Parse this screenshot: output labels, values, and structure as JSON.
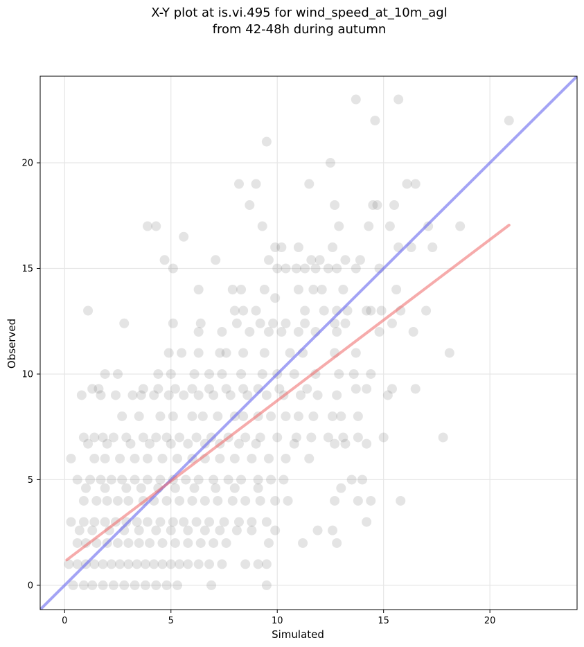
{
  "chart_data": {
    "type": "scatter",
    "title_line1": "X-Y plot at is.vi.495 for wind_speed_at_10m_agl",
    "title_line2": "from 42-48h during autumn",
    "xlabel": "Simulated",
    "ylabel": "Observed",
    "xlim": [
      -1.15,
      24.1
    ],
    "ylim": [
      -1.15,
      24.1
    ],
    "xticks": [
      0,
      5,
      10,
      15,
      20
    ],
    "yticks": [
      0,
      5,
      10,
      15,
      20
    ],
    "grid": true,
    "colors": {
      "points": "#555555",
      "one_to_one": "#6666ee",
      "regression": "#ee6666",
      "grid": "#e6e6e6"
    },
    "one_to_one_line": {
      "x": [
        -1.15,
        24.1
      ],
      "y": [
        -1.15,
        24.1
      ]
    },
    "regression_line": {
      "x": [
        0.1,
        20.9
      ],
      "y": [
        1.2,
        17.05
      ]
    },
    "points": [
      [
        13.7,
        23.0
      ],
      [
        15.7,
        23.0
      ],
      [
        14.6,
        22.0
      ],
      [
        20.9,
        22.0
      ],
      [
        9.5,
        21.0
      ],
      [
        12.5,
        20.0
      ],
      [
        8.2,
        19.0
      ],
      [
        9.0,
        19.0
      ],
      [
        11.5,
        19.0
      ],
      [
        16.1,
        19.0
      ],
      [
        16.5,
        19.0
      ],
      [
        8.7,
        18.0
      ],
      [
        12.7,
        18.0
      ],
      [
        14.5,
        18.0
      ],
      [
        14.7,
        18.0
      ],
      [
        15.5,
        18.0
      ],
      [
        3.9,
        17.0
      ],
      [
        4.3,
        17.0
      ],
      [
        9.3,
        17.0
      ],
      [
        12.9,
        17.0
      ],
      [
        14.3,
        17.0
      ],
      [
        15.3,
        17.0
      ],
      [
        17.1,
        17.0
      ],
      [
        18.6,
        17.0
      ],
      [
        5.6,
        16.5
      ],
      [
        9.9,
        16.0
      ],
      [
        10.2,
        16.0
      ],
      [
        11.0,
        16.0
      ],
      [
        12.6,
        16.0
      ],
      [
        15.7,
        16.0
      ],
      [
        16.3,
        16.0
      ],
      [
        17.3,
        16.0
      ],
      [
        4.7,
        15.4
      ],
      [
        7.1,
        15.4
      ],
      [
        9.6,
        15.4
      ],
      [
        11.6,
        15.4
      ],
      [
        12.0,
        15.4
      ],
      [
        13.2,
        15.4
      ],
      [
        13.9,
        15.4
      ],
      [
        5.1,
        15.0
      ],
      [
        10.0,
        15.0
      ],
      [
        10.4,
        15.0
      ],
      [
        10.9,
        15.0
      ],
      [
        11.3,
        15.0
      ],
      [
        11.8,
        15.0
      ],
      [
        12.4,
        15.0
      ],
      [
        12.8,
        15.0
      ],
      [
        13.7,
        15.0
      ],
      [
        14.8,
        15.0
      ],
      [
        9.9,
        13.6
      ],
      [
        6.3,
        14.0
      ],
      [
        7.9,
        14.0
      ],
      [
        8.3,
        14.0
      ],
      [
        9.4,
        14.0
      ],
      [
        11.0,
        14.0
      ],
      [
        11.7,
        14.0
      ],
      [
        12.1,
        14.0
      ],
      [
        13.1,
        14.0
      ],
      [
        15.6,
        14.0
      ],
      [
        1.1,
        13.0
      ],
      [
        8.0,
        13.0
      ],
      [
        8.4,
        13.0
      ],
      [
        9.0,
        13.0
      ],
      [
        11.3,
        13.0
      ],
      [
        12.2,
        13.0
      ],
      [
        12.8,
        13.0
      ],
      [
        13.3,
        13.0
      ],
      [
        14.2,
        13.0
      ],
      [
        14.4,
        13.0
      ],
      [
        14.9,
        13.0
      ],
      [
        15.8,
        13.0
      ],
      [
        17.0,
        13.0
      ],
      [
        2.8,
        12.4
      ],
      [
        5.1,
        12.4
      ],
      [
        6.4,
        12.4
      ],
      [
        8.1,
        12.4
      ],
      [
        9.2,
        12.4
      ],
      [
        9.8,
        12.4
      ],
      [
        10.4,
        12.4
      ],
      [
        11.3,
        12.4
      ],
      [
        12.7,
        12.4
      ],
      [
        13.2,
        12.4
      ],
      [
        15.4,
        12.4
      ],
      [
        6.3,
        12.0
      ],
      [
        7.4,
        12.0
      ],
      [
        8.7,
        12.0
      ],
      [
        9.6,
        12.0
      ],
      [
        10.2,
        12.0
      ],
      [
        11.0,
        12.0
      ],
      [
        11.8,
        12.0
      ],
      [
        12.8,
        12.0
      ],
      [
        14.8,
        12.0
      ],
      [
        16.4,
        12.0
      ],
      [
        4.9,
        11.0
      ],
      [
        5.5,
        11.0
      ],
      [
        6.3,
        11.0
      ],
      [
        7.3,
        11.0
      ],
      [
        7.6,
        11.0
      ],
      [
        8.4,
        11.0
      ],
      [
        9.4,
        11.0
      ],
      [
        10.6,
        11.0
      ],
      [
        11.2,
        11.0
      ],
      [
        12.7,
        11.0
      ],
      [
        13.7,
        11.0
      ],
      [
        18.1,
        11.0
      ],
      [
        1.9,
        10.0
      ],
      [
        2.5,
        10.0
      ],
      [
        4.4,
        10.0
      ],
      [
        5.0,
        10.0
      ],
      [
        6.1,
        10.0
      ],
      [
        6.8,
        10.0
      ],
      [
        7.4,
        10.0
      ],
      [
        8.3,
        10.0
      ],
      [
        9.3,
        10.0
      ],
      [
        10.0,
        10.0
      ],
      [
        10.8,
        10.0
      ],
      [
        11.8,
        10.0
      ],
      [
        12.9,
        10.0
      ],
      [
        13.6,
        10.0
      ],
      [
        14.4,
        10.0
      ],
      [
        1.3,
        9.3
      ],
      [
        1.6,
        9.3
      ],
      [
        3.7,
        9.3
      ],
      [
        4.4,
        9.3
      ],
      [
        5.2,
        9.3
      ],
      [
        6.0,
        9.3
      ],
      [
        6.8,
        9.3
      ],
      [
        7.6,
        9.3
      ],
      [
        8.4,
        9.3
      ],
      [
        9.1,
        9.3
      ],
      [
        10.1,
        9.3
      ],
      [
        11.4,
        9.3
      ],
      [
        13.7,
        9.3
      ],
      [
        14.2,
        9.3
      ],
      [
        15.4,
        9.3
      ],
      [
        16.5,
        9.3
      ],
      [
        0.8,
        9.0
      ],
      [
        1.7,
        9.0
      ],
      [
        2.4,
        9.0
      ],
      [
        3.2,
        9.0
      ],
      [
        3.6,
        9.0
      ],
      [
        4.2,
        9.0
      ],
      [
        4.9,
        9.0
      ],
      [
        5.6,
        9.0
      ],
      [
        6.3,
        9.0
      ],
      [
        7.0,
        9.0
      ],
      [
        7.8,
        9.0
      ],
      [
        8.6,
        9.0
      ],
      [
        9.5,
        9.0
      ],
      [
        10.3,
        9.0
      ],
      [
        11.1,
        9.0
      ],
      [
        11.9,
        9.0
      ],
      [
        12.8,
        9.0
      ],
      [
        15.2,
        9.0
      ],
      [
        2.7,
        8.0
      ],
      [
        3.5,
        8.0
      ],
      [
        4.5,
        8.0
      ],
      [
        5.1,
        8.0
      ],
      [
        6.0,
        8.0
      ],
      [
        6.5,
        8.0
      ],
      [
        7.2,
        8.0
      ],
      [
        8.0,
        8.0
      ],
      [
        8.4,
        8.0
      ],
      [
        9.1,
        8.0
      ],
      [
        9.7,
        8.0
      ],
      [
        10.4,
        8.0
      ],
      [
        11.0,
        8.0
      ],
      [
        11.7,
        8.0
      ],
      [
        12.6,
        8.0
      ],
      [
        13.0,
        8.0
      ],
      [
        13.8,
        8.0
      ],
      [
        0.9,
        7.0
      ],
      [
        1.4,
        7.0
      ],
      [
        1.8,
        7.0
      ],
      [
        2.3,
        7.0
      ],
      [
        2.9,
        7.0
      ],
      [
        3.7,
        7.0
      ],
      [
        4.3,
        7.0
      ],
      [
        4.8,
        7.0
      ],
      [
        5.4,
        7.0
      ],
      [
        6.2,
        7.0
      ],
      [
        6.9,
        7.0
      ],
      [
        7.7,
        7.0
      ],
      [
        8.5,
        7.0
      ],
      [
        9.2,
        7.0
      ],
      [
        10.0,
        7.0
      ],
      [
        10.9,
        7.0
      ],
      [
        11.6,
        7.0
      ],
      [
        12.4,
        7.0
      ],
      [
        13.1,
        7.0
      ],
      [
        13.8,
        7.0
      ],
      [
        15.0,
        7.0
      ],
      [
        17.8,
        7.0
      ],
      [
        1.1,
        6.7
      ],
      [
        2.0,
        6.7
      ],
      [
        3.1,
        6.7
      ],
      [
        4.0,
        6.7
      ],
      [
        5.0,
        6.7
      ],
      [
        5.8,
        6.7
      ],
      [
        6.6,
        6.7
      ],
      [
        7.3,
        6.7
      ],
      [
        8.2,
        6.7
      ],
      [
        9.0,
        6.7
      ],
      [
        10.8,
        6.7
      ],
      [
        12.7,
        6.7
      ],
      [
        13.2,
        6.7
      ],
      [
        14.2,
        6.7
      ],
      [
        0.3,
        6.0
      ],
      [
        1.4,
        6.0
      ],
      [
        1.9,
        6.0
      ],
      [
        2.6,
        6.0
      ],
      [
        3.3,
        6.0
      ],
      [
        3.9,
        6.0
      ],
      [
        4.6,
        6.0
      ],
      [
        5.3,
        6.0
      ],
      [
        6.0,
        6.0
      ],
      [
        6.6,
        6.0
      ],
      [
        7.3,
        6.0
      ],
      [
        8.0,
        6.0
      ],
      [
        8.8,
        6.0
      ],
      [
        9.6,
        6.0
      ],
      [
        10.4,
        6.0
      ],
      [
        11.5,
        6.0
      ],
      [
        0.6,
        5.0
      ],
      [
        1.2,
        5.0
      ],
      [
        1.7,
        5.0
      ],
      [
        2.2,
        5.0
      ],
      [
        2.7,
        5.0
      ],
      [
        3.3,
        5.0
      ],
      [
        3.9,
        5.0
      ],
      [
        4.5,
        5.0
      ],
      [
        5.1,
        5.0
      ],
      [
        5.7,
        5.0
      ],
      [
        6.3,
        5.0
      ],
      [
        7.0,
        5.0
      ],
      [
        7.7,
        5.0
      ],
      [
        8.3,
        5.0
      ],
      [
        9.1,
        5.0
      ],
      [
        9.7,
        5.0
      ],
      [
        10.3,
        5.0
      ],
      [
        13.5,
        5.0
      ],
      [
        14.0,
        5.0
      ],
      [
        1.0,
        4.6
      ],
      [
        1.9,
        4.6
      ],
      [
        2.9,
        4.6
      ],
      [
        3.6,
        4.6
      ],
      [
        4.4,
        4.6
      ],
      [
        5.2,
        4.6
      ],
      [
        6.1,
        4.6
      ],
      [
        7.1,
        4.6
      ],
      [
        8.0,
        4.6
      ],
      [
        9.1,
        4.6
      ],
      [
        13.0,
        4.6
      ],
      [
        0.9,
        4.0
      ],
      [
        1.5,
        4.0
      ],
      [
        2.0,
        4.0
      ],
      [
        2.5,
        4.0
      ],
      [
        3.0,
        4.0
      ],
      [
        3.7,
        4.0
      ],
      [
        4.2,
        4.0
      ],
      [
        4.8,
        4.0
      ],
      [
        5.4,
        4.0
      ],
      [
        6.0,
        4.0
      ],
      [
        6.6,
        4.0
      ],
      [
        7.2,
        4.0
      ],
      [
        7.9,
        4.0
      ],
      [
        8.5,
        4.0
      ],
      [
        9.2,
        4.0
      ],
      [
        9.9,
        4.0
      ],
      [
        10.5,
        4.0
      ],
      [
        12.7,
        4.0
      ],
      [
        13.8,
        4.0
      ],
      [
        14.4,
        4.0
      ],
      [
        15.8,
        4.0
      ],
      [
        0.3,
        3.0
      ],
      [
        0.9,
        3.0
      ],
      [
        1.4,
        3.0
      ],
      [
        1.9,
        3.0
      ],
      [
        2.4,
        3.0
      ],
      [
        2.9,
        3.0
      ],
      [
        3.4,
        3.0
      ],
      [
        3.9,
        3.0
      ],
      [
        4.5,
        3.0
      ],
      [
        5.1,
        3.0
      ],
      [
        5.6,
        3.0
      ],
      [
        6.2,
        3.0
      ],
      [
        6.8,
        3.0
      ],
      [
        7.5,
        3.0
      ],
      [
        8.2,
        3.0
      ],
      [
        8.8,
        3.0
      ],
      [
        9.5,
        3.0
      ],
      [
        14.2,
        3.0
      ],
      [
        0.7,
        2.6
      ],
      [
        1.3,
        2.6
      ],
      [
        2.1,
        2.6
      ],
      [
        2.8,
        2.6
      ],
      [
        3.5,
        2.6
      ],
      [
        4.3,
        2.6
      ],
      [
        5.0,
        2.6
      ],
      [
        5.8,
        2.6
      ],
      [
        6.6,
        2.6
      ],
      [
        7.3,
        2.6
      ],
      [
        8.1,
        2.6
      ],
      [
        8.8,
        2.6
      ],
      [
        9.9,
        2.6
      ],
      [
        11.9,
        2.6
      ],
      [
        12.6,
        2.6
      ],
      [
        0.6,
        2.0
      ],
      [
        1.0,
        2.0
      ],
      [
        1.5,
        2.0
      ],
      [
        2.0,
        2.0
      ],
      [
        2.5,
        2.0
      ],
      [
        3.0,
        2.0
      ],
      [
        3.5,
        2.0
      ],
      [
        4.0,
        2.0
      ],
      [
        4.6,
        2.0
      ],
      [
        5.2,
        2.0
      ],
      [
        5.8,
        2.0
      ],
      [
        6.4,
        2.0
      ],
      [
        7.0,
        2.0
      ],
      [
        7.6,
        2.0
      ],
      [
        9.6,
        2.0
      ],
      [
        11.2,
        2.0
      ],
      [
        12.8,
        2.0
      ],
      [
        0.2,
        1.0
      ],
      [
        0.6,
        1.0
      ],
      [
        1.0,
        1.0
      ],
      [
        1.4,
        1.0
      ],
      [
        1.8,
        1.0
      ],
      [
        2.2,
        1.0
      ],
      [
        2.6,
        1.0
      ],
      [
        3.0,
        1.0
      ],
      [
        3.4,
        1.0
      ],
      [
        3.8,
        1.0
      ],
      [
        4.2,
        1.0
      ],
      [
        4.6,
        1.0
      ],
      [
        5.0,
        1.0
      ],
      [
        5.4,
        1.0
      ],
      [
        5.8,
        1.0
      ],
      [
        6.3,
        1.0
      ],
      [
        6.8,
        1.0
      ],
      [
        7.4,
        1.0
      ],
      [
        8.5,
        1.0
      ],
      [
        9.1,
        1.0
      ],
      [
        9.5,
        1.0
      ],
      [
        0.4,
        0.0
      ],
      [
        0.9,
        0.0
      ],
      [
        1.3,
        0.0
      ],
      [
        1.8,
        0.0
      ],
      [
        2.3,
        0.0
      ],
      [
        2.8,
        0.0
      ],
      [
        3.3,
        0.0
      ],
      [
        3.8,
        0.0
      ],
      [
        4.3,
        0.0
      ],
      [
        4.8,
        0.0
      ],
      [
        5.3,
        0.0
      ],
      [
        6.9,
        0.0
      ],
      [
        9.5,
        0.0
      ]
    ]
  }
}
